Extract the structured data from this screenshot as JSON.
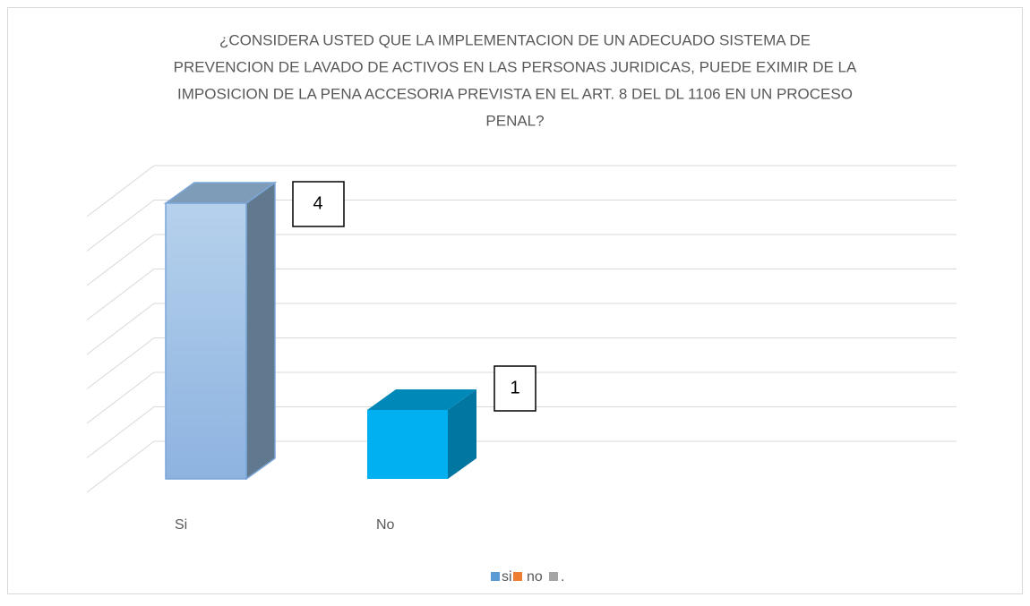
{
  "chart_data": {
    "type": "bar3d",
    "title": [
      "¿CONSIDERA USTED QUE LA IMPLEMENTACION DE UN ADECUADO  SISTEMA DE",
      "PREVENCION  DE LAVADO DE ACTIVOS EN LAS PERSONAS JURIDICAS, PUEDE  EXIMIR DE  LA",
      "IMPOSICION DE LA PENA  ACCESORIA PREVISTA EN EL ART. 8 DEL DL 1106 EN UN PROCESO",
      "PENAL?"
    ],
    "categories": [
      "Si",
      "No"
    ],
    "values": [
      4,
      1
    ],
    "colors": [
      "#9dc3e6",
      "#00b0f0"
    ],
    "ylim": [
      0,
      4
    ],
    "yticks": [
      0,
      0.5,
      1,
      1.5,
      2,
      2.5,
      3,
      3.5,
      4
    ],
    "grid": true,
    "legend": [
      {
        "name": "si",
        "color": "#5b9bd5"
      },
      {
        "name": "no",
        "color": "#ed7d31"
      },
      {
        "name": ".",
        "color": "#a5a5a5"
      }
    ],
    "legend_position": "bottom"
  }
}
